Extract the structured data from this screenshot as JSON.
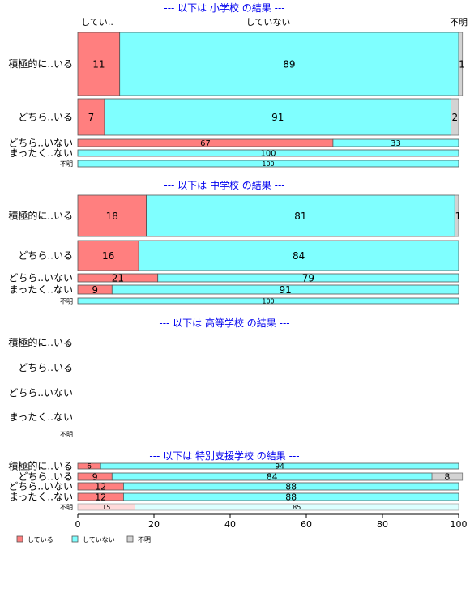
{
  "chart_data": {
    "type": "bar",
    "orientation": "horizontal",
    "stacked": true,
    "xlim": [
      0,
      100
    ],
    "x_ticks": [
      "0",
      "20",
      "40",
      "60",
      "80",
      "100"
    ],
    "column_labels": [
      "してい..",
      "していない",
      "不明"
    ],
    "legend": [
      {
        "name": "している",
        "color": "#ff7f7f"
      },
      {
        "name": "していない",
        "color": "#7fffff"
      },
      {
        "name": "不明",
        "color": "#d3d3d3"
      }
    ],
    "panels": [
      {
        "title": "--- 以下は 小学校 の結果 ---",
        "categories": [
          "積極的に..いる",
          "どちら..いる",
          "どちら..いない",
          "まったく..ない",
          "不明"
        ],
        "rows": [
          {
            "values": [
              11,
              89,
              1
            ],
            "labels": [
              "11",
              "89",
              "1"
            ]
          },
          {
            "values": [
              7,
              91,
              2
            ],
            "labels": [
              "7",
              "91",
              "2"
            ]
          },
          {
            "values": [
              67,
              33,
              0
            ],
            "labels": [
              "67",
              "33",
              ""
            ]
          },
          {
            "values": [
              0,
              100,
              0
            ],
            "labels": [
              "",
              "100",
              ""
            ]
          },
          {
            "values": [
              0,
              100,
              0
            ],
            "labels": [
              "",
              "100",
              ""
            ]
          }
        ]
      },
      {
        "title": "--- 以下は 中学校 の結果 ---",
        "categories": [
          "積極的に..いる",
          "どちら..いる",
          "どちら..いない",
          "まったく..ない",
          "不明"
        ],
        "rows": [
          {
            "values": [
              18,
              81,
              1
            ],
            "labels": [
              "18",
              "81",
              "1"
            ]
          },
          {
            "values": [
              16,
              84,
              0
            ],
            "labels": [
              "16",
              "84",
              ""
            ]
          },
          {
            "values": [
              21,
              79,
              0
            ],
            "labels": [
              "21",
              "79",
              ""
            ]
          },
          {
            "values": [
              9,
              91,
              0
            ],
            "labels": [
              "9",
              "91",
              ""
            ]
          },
          {
            "values": [
              0,
              100,
              0
            ],
            "labels": [
              "",
              "100",
              ""
            ]
          }
        ]
      },
      {
        "title": "--- 以下は 高等学校 の結果 ---",
        "categories": [
          "積極的に..いる",
          "どちら..いる",
          "どちら..いない",
          "まったく..ない",
          "不明"
        ],
        "rows": [
          {
            "values": [
              0,
              0,
              0
            ],
            "labels": [
              "",
              "",
              ""
            ]
          },
          {
            "values": [
              0,
              0,
              0
            ],
            "labels": [
              "",
              "",
              ""
            ]
          },
          {
            "values": [
              0,
              0,
              0
            ],
            "labels": [
              "",
              "",
              ""
            ]
          },
          {
            "values": [
              0,
              0,
              0
            ],
            "labels": [
              "",
              "",
              ""
            ]
          },
          {
            "values": [
              0,
              0,
              0
            ],
            "labels": [
              "",
              "",
              ""
            ]
          }
        ]
      },
      {
        "title": "--- 以下は 特別支援学校 の結果 ---",
        "categories": [
          "積極的に..いる",
          "どちら..いる",
          "どちら..いない",
          "まったく..ない",
          "不明"
        ],
        "rows": [
          {
            "values": [
              6,
              94,
              0
            ],
            "labels": [
              "6",
              "94",
              ""
            ]
          },
          {
            "values": [
              9,
              84,
              8
            ],
            "labels": [
              "9",
              "84",
              "8"
            ]
          },
          {
            "values": [
              12,
              88,
              0
            ],
            "labels": [
              "12",
              "88",
              ""
            ]
          },
          {
            "values": [
              12,
              88,
              0
            ],
            "labels": [
              "12",
              "88",
              ""
            ]
          },
          {
            "values": [
              15,
              85,
              0
            ],
            "labels": [
              "15",
              "85",
              ""
            ],
            "faded": true
          }
        ]
      }
    ]
  }
}
